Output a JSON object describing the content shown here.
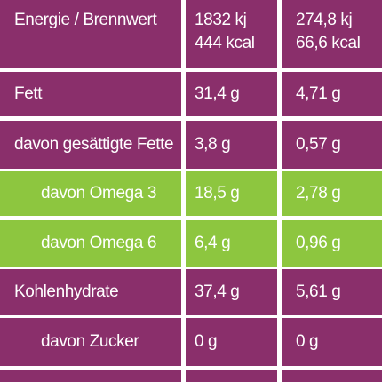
{
  "rows": [
    {
      "label": "Energie / Brennwert",
      "col2": [
        "1832 kj",
        "444 kcal"
      ],
      "col3": [
        "274,8 kj",
        "66,6 kcal"
      ]
    },
    {
      "label": "Fett",
      "col2": "31,4 g",
      "col3": "4,71 g"
    },
    {
      "label": "davon gesättigte Fette",
      "col2": "3,8 g",
      "col3": "0,57 g"
    },
    {
      "label": "davon Omega 3",
      "col2": "18,5 g",
      "col3": "2,78 g"
    },
    {
      "label": "davon Omega 6",
      "col2": "6,4 g",
      "col3": "0,96 g"
    },
    {
      "label": "Kohlenhydrate",
      "col2": "37,4 g",
      "col3": "5,61 g"
    },
    {
      "label": "davon Zucker",
      "col2": "0 g",
      "col3": "0 g"
    }
  ],
  "colors": {
    "purple": "#8a2f6b",
    "green": "#8dc63f",
    "gap": "#ffffff"
  }
}
